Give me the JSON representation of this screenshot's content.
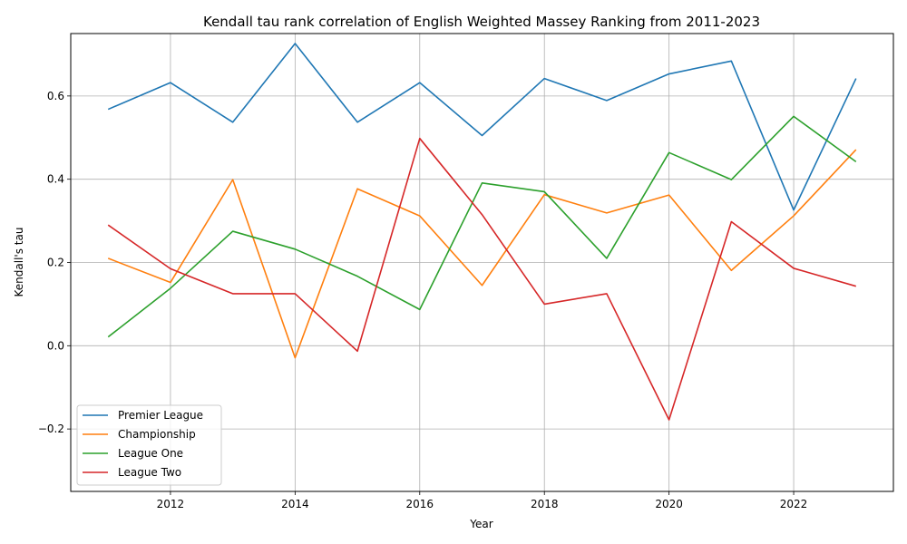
{
  "chart_data": {
    "type": "line",
    "title": "Kendall tau rank correlation of English Weighted Massey Ranking from 2011-2023",
    "xlabel": "Year",
    "ylabel": "Kendall's tau",
    "x": [
      2011,
      2012,
      2013,
      2014,
      2015,
      2016,
      2017,
      2018,
      2019,
      2020,
      2021,
      2022,
      2023
    ],
    "xlim": [
      2010.4,
      2023.6
    ],
    "ylim": [
      -0.35,
      0.75
    ],
    "xticks": [
      2012,
      2014,
      2016,
      2018,
      2020,
      2022
    ],
    "yticks": [
      -0.2,
      0.0,
      0.2,
      0.4,
      0.6
    ],
    "ytick_labels": [
      "−0.2",
      "0.0",
      "0.2",
      "0.4",
      "0.6"
    ],
    "grid": true,
    "legend_position": "lower-left",
    "series": [
      {
        "name": "Premier League",
        "color": "#1f77b4",
        "values": [
          0.568,
          0.632,
          0.537,
          0.726,
          0.537,
          0.632,
          0.505,
          0.642,
          0.589,
          0.653,
          0.684,
          0.326,
          0.642
        ]
      },
      {
        "name": "Championship",
        "color": "#ff7f0e",
        "values": [
          0.21,
          0.152,
          0.399,
          -0.029,
          0.377,
          0.312,
          0.145,
          0.363,
          0.319,
          0.362,
          0.181,
          0.312,
          0.471
        ]
      },
      {
        "name": "League One",
        "color": "#2ca02c",
        "values": [
          0.021,
          0.138,
          0.275,
          0.232,
          0.167,
          0.087,
          0.391,
          0.37,
          0.21,
          0.464,
          0.399,
          0.551,
          0.442
        ]
      },
      {
        "name": "League Two",
        "color": "#d62728",
        "values": [
          0.29,
          0.185,
          0.125,
          0.125,
          -0.013,
          0.498,
          0.315,
          0.1,
          0.125,
          -0.178,
          0.298,
          0.186,
          0.143
        ]
      }
    ]
  }
}
